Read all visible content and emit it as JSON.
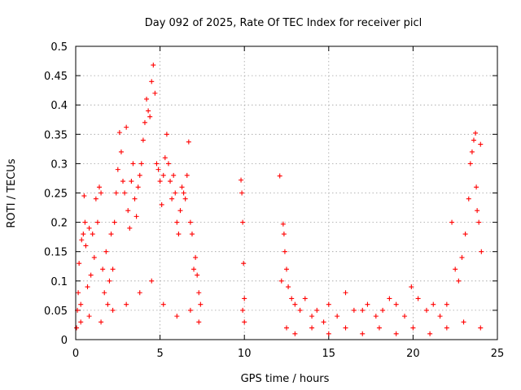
{
  "chart_data": {
    "type": "scatter",
    "title": "Day 092 of 2025, Rate Of TEC Index for receiver picl",
    "xlabel": "GPS time / hours",
    "ylabel": "ROTI / TECUs",
    "xlim": [
      0,
      25
    ],
    "ylim": [
      0,
      0.5
    ],
    "xticks": [
      0,
      5,
      10,
      15,
      20,
      25
    ],
    "yticks": [
      0,
      0.05,
      0.1,
      0.15,
      0.2,
      0.25,
      0.3,
      0.35,
      0.4,
      0.45,
      0.5
    ],
    "xtick_labels": [
      "0",
      "5",
      "10",
      "15",
      "20",
      "25"
    ],
    "ytick_labels": [
      "0",
      "0.05",
      "0.1",
      "0.15",
      "0.2",
      "0.25",
      "0.3",
      "0.35",
      "0.4",
      "0.45",
      "0.5"
    ],
    "grid": true,
    "marker": "plus",
    "color": "#ff0000",
    "series": [
      {
        "points": [
          [
            0.05,
            0.02
          ],
          [
            0.1,
            0.05
          ],
          [
            0.15,
            0.08
          ],
          [
            0.2,
            0.13
          ],
          [
            0.3,
            0.06
          ],
          [
            0.35,
            0.17
          ],
          [
            0.45,
            0.18
          ],
          [
            0.5,
            0.245
          ],
          [
            0.55,
            0.2
          ],
          [
            0.6,
            0.16
          ],
          [
            0.7,
            0.09
          ],
          [
            0.8,
            0.19
          ],
          [
            0.9,
            0.11
          ],
          [
            1.0,
            0.18
          ],
          [
            1.1,
            0.14
          ],
          [
            1.2,
            0.24
          ],
          [
            1.3,
            0.2
          ],
          [
            1.4,
            0.26
          ],
          [
            1.5,
            0.25
          ],
          [
            1.6,
            0.12
          ],
          [
            1.7,
            0.08
          ],
          [
            1.8,
            0.15
          ],
          [
            1.9,
            0.06
          ],
          [
            2.0,
            0.1
          ],
          [
            2.1,
            0.18
          ],
          [
            2.2,
            0.12
          ],
          [
            2.3,
            0.2
          ],
          [
            2.4,
            0.25
          ],
          [
            2.5,
            0.29
          ],
          [
            2.6,
            0.353
          ],
          [
            2.7,
            0.32
          ],
          [
            2.8,
            0.27
          ],
          [
            2.9,
            0.25
          ],
          [
            3.0,
            0.362
          ],
          [
            3.1,
            0.22
          ],
          [
            3.2,
            0.19
          ],
          [
            3.3,
            0.27
          ],
          [
            3.4,
            0.3
          ],
          [
            3.5,
            0.24
          ],
          [
            3.6,
            0.21
          ],
          [
            3.7,
            0.26
          ],
          [
            3.8,
            0.28
          ],
          [
            3.9,
            0.3
          ],
          [
            4.0,
            0.34
          ],
          [
            4.1,
            0.37
          ],
          [
            4.2,
            0.41
          ],
          [
            4.3,
            0.39
          ],
          [
            4.4,
            0.38
          ],
          [
            4.5,
            0.44
          ],
          [
            4.6,
            0.468
          ],
          [
            4.7,
            0.42
          ],
          [
            4.8,
            0.3
          ],
          [
            4.9,
            0.29
          ],
          [
            5.0,
            0.27
          ],
          [
            5.1,
            0.23
          ],
          [
            5.2,
            0.28
          ],
          [
            5.3,
            0.31
          ],
          [
            5.4,
            0.35
          ],
          [
            5.5,
            0.3
          ],
          [
            5.6,
            0.27
          ],
          [
            5.7,
            0.24
          ],
          [
            5.8,
            0.28
          ],
          [
            5.9,
            0.25
          ],
          [
            6.0,
            0.2
          ],
          [
            6.1,
            0.18
          ],
          [
            6.2,
            0.22
          ],
          [
            6.3,
            0.26
          ],
          [
            6.4,
            0.25
          ],
          [
            6.5,
            0.24
          ],
          [
            6.6,
            0.28
          ],
          [
            6.7,
            0.337
          ],
          [
            6.8,
            0.2
          ],
          [
            6.9,
            0.18
          ],
          [
            7.0,
            0.12
          ],
          [
            7.1,
            0.14
          ],
          [
            7.2,
            0.11
          ],
          [
            7.3,
            0.08
          ],
          [
            7.4,
            0.06
          ],
          [
            0.3,
            0.03
          ],
          [
            0.8,
            0.04
          ],
          [
            1.5,
            0.03
          ],
          [
            2.2,
            0.05
          ],
          [
            3.0,
            0.06
          ],
          [
            3.8,
            0.08
          ],
          [
            4.5,
            0.1
          ],
          [
            5.2,
            0.06
          ],
          [
            6.0,
            0.04
          ],
          [
            6.8,
            0.05
          ],
          [
            7.3,
            0.03
          ],
          [
            9.8,
            0.272
          ],
          [
            9.85,
            0.25
          ],
          [
            9.9,
            0.2
          ],
          [
            9.95,
            0.13
          ],
          [
            10.0,
            0.07
          ],
          [
            9.9,
            0.05
          ],
          [
            10.0,
            0.03
          ],
          [
            12.1,
            0.279
          ],
          [
            12.2,
            0.1
          ],
          [
            12.3,
            0.197
          ],
          [
            12.35,
            0.18
          ],
          [
            12.4,
            0.15
          ],
          [
            12.5,
            0.12
          ],
          [
            12.6,
            0.09
          ],
          [
            12.8,
            0.07
          ],
          [
            13.0,
            0.06
          ],
          [
            13.3,
            0.05
          ],
          [
            13.6,
            0.07
          ],
          [
            14.0,
            0.04
          ],
          [
            14.3,
            0.05
          ],
          [
            14.7,
            0.03
          ],
          [
            15.0,
            0.06
          ],
          [
            15.5,
            0.04
          ],
          [
            16.0,
            0.08
          ],
          [
            16.5,
            0.05
          ],
          [
            17.0,
            0.05
          ],
          [
            17.3,
            0.06
          ],
          [
            17.8,
            0.04
          ],
          [
            18.2,
            0.05
          ],
          [
            18.6,
            0.07
          ],
          [
            19.0,
            0.06
          ],
          [
            19.5,
            0.04
          ],
          [
            19.9,
            0.09
          ],
          [
            20.3,
            0.07
          ],
          [
            20.8,
            0.05
          ],
          [
            21.2,
            0.06
          ],
          [
            21.6,
            0.04
          ],
          [
            22.0,
            0.06
          ],
          [
            22.3,
            0.2
          ],
          [
            22.5,
            0.12
          ],
          [
            22.7,
            0.1
          ],
          [
            22.9,
            0.14
          ],
          [
            23.1,
            0.18
          ],
          [
            23.3,
            0.24
          ],
          [
            23.4,
            0.3
          ],
          [
            23.5,
            0.32
          ],
          [
            23.6,
            0.34
          ],
          [
            23.7,
            0.352
          ],
          [
            23.75,
            0.26
          ],
          [
            23.8,
            0.22
          ],
          [
            23.9,
            0.2
          ],
          [
            24.0,
            0.333
          ],
          [
            24.05,
            0.15
          ],
          [
            12.5,
            0.02
          ],
          [
            13.0,
            0.01
          ],
          [
            14.0,
            0.02
          ],
          [
            15.0,
            0.01
          ],
          [
            16.0,
            0.02
          ],
          [
            17.0,
            0.01
          ],
          [
            18.0,
            0.02
          ],
          [
            19.0,
            0.01
          ],
          [
            20.0,
            0.02
          ],
          [
            21.0,
            0.01
          ],
          [
            22.0,
            0.02
          ],
          [
            23.0,
            0.03
          ],
          [
            24.0,
            0.02
          ]
        ]
      }
    ]
  }
}
